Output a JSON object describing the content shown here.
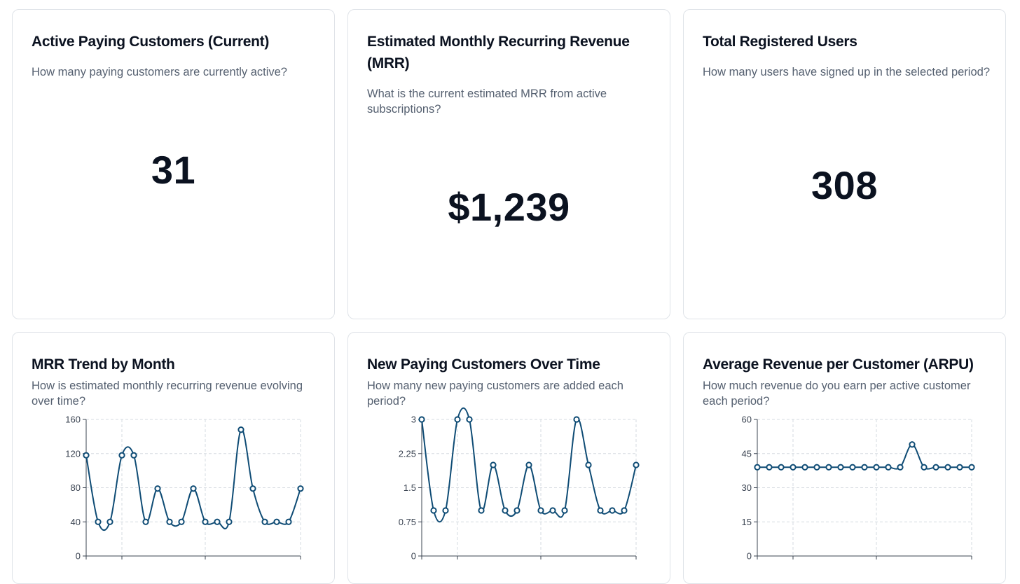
{
  "cards": {
    "active_customers": {
      "title": "Active Paying Customers (Current)",
      "description": "How many paying customers are currently active?",
      "value": "31"
    },
    "mrr": {
      "title": "Estimated Monthly Recurring Revenue (MRR)",
      "description": "What is the current estimated MRR from active subscriptions?",
      "value": "$1,239"
    },
    "registered_users": {
      "title": "Total Registered Users",
      "description": "How many users have signed up in the selected period?",
      "value": "308"
    },
    "mrr_trend": {
      "title": "MRR Trend by Month",
      "description": "How is estimated monthly recurring revenue evolving over time?"
    },
    "new_customers": {
      "title": "New Paying Customers Over Time",
      "description": "How many new paying customers are added each period?"
    },
    "arpu": {
      "title": "Average Revenue per Customer (ARPU)",
      "description": "How much revenue do you earn per active customer each period?"
    }
  },
  "colors": {
    "line": "#0f4c75",
    "grid": "#d6dbe1",
    "axis": "#3b4452"
  },
  "chart_data": [
    {
      "type": "line",
      "title": "MRR Trend by Month",
      "x": [
        1,
        2,
        3,
        4,
        5,
        6,
        7,
        8,
        9,
        10,
        11,
        12,
        13,
        14,
        15,
        16,
        17,
        18,
        19
      ],
      "values": [
        118,
        40,
        40,
        118,
        118,
        40,
        79,
        40,
        40,
        79,
        40,
        40,
        40,
        148,
        79,
        40,
        40,
        40,
        79
      ],
      "yticks": [
        "0",
        "40",
        "80",
        "120",
        "160"
      ],
      "ylim": [
        0,
        160
      ]
    },
    {
      "type": "line",
      "title": "New Paying Customers Over Time",
      "x": [
        1,
        2,
        3,
        4,
        5,
        6,
        7,
        8,
        9,
        10,
        11,
        12,
        13,
        14,
        15,
        16,
        17,
        18,
        19
      ],
      "values": [
        3,
        1,
        1,
        3,
        3,
        1,
        2,
        1,
        1,
        2,
        1,
        1,
        1,
        3,
        2,
        1,
        1,
        1,
        2
      ],
      "yticks": [
        "0",
        "0.75",
        "1.5",
        "2.25",
        "3"
      ],
      "ylim": [
        0,
        3
      ]
    },
    {
      "type": "line",
      "title": "Average Revenue per Customer (ARPU)",
      "x": [
        1,
        2,
        3,
        4,
        5,
        6,
        7,
        8,
        9,
        10,
        11,
        12,
        13,
        14,
        15,
        16,
        17,
        18,
        19
      ],
      "values": [
        39,
        39,
        39,
        39,
        39,
        39,
        39,
        39,
        39,
        39,
        39,
        39,
        39,
        49,
        39,
        39,
        39,
        39,
        39
      ],
      "yticks": [
        "0",
        "15",
        "30",
        "45",
        "60"
      ],
      "ylim": [
        0,
        60
      ]
    }
  ]
}
